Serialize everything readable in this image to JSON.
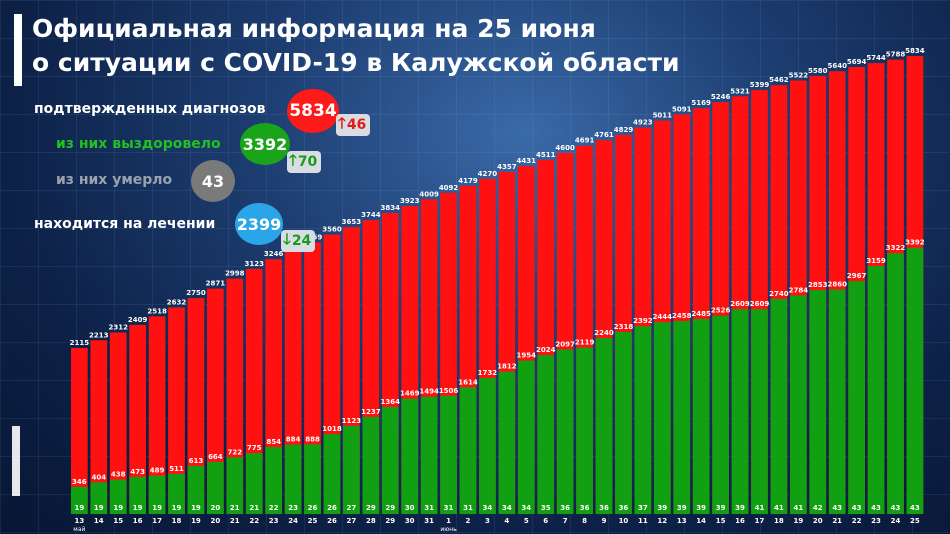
{
  "title_line1": "Официальная информация на 25 июня",
  "title_line2": "о ситуации с COVID-19 в Калужской области",
  "stats": {
    "confirmed": {
      "label": "подтвержденных диагнозов",
      "value": "5834",
      "delta": "46",
      "color": "#ff1a1a"
    },
    "recovered": {
      "label": "из них выздоровело",
      "value": "3392",
      "delta": "70",
      "color": "#1aa41a"
    },
    "died": {
      "label": "из них умерло",
      "value": "43",
      "color": "#7a7a7a"
    },
    "treatment": {
      "label": "находится на лечении",
      "value": "2399",
      "delta": "24",
      "color": "#2aa6e8"
    }
  },
  "colors": {
    "confirmed": "#ff1111",
    "recovered": "#11a011",
    "died_text": "#ffffff",
    "up_arrow_red": "#e01b1b",
    "up_arrow_green": "#1a9a1a",
    "down_arrow_green": "#1a9a1a"
  },
  "chart_data": {
    "type": "bar",
    "x": [
      "13",
      "14",
      "15",
      "16",
      "17",
      "18",
      "19",
      "20",
      "21",
      "22",
      "23",
      "24",
      "25",
      "26",
      "27",
      "28",
      "29",
      "30",
      "31",
      "1",
      "2",
      "3",
      "4",
      "5",
      "6",
      "7",
      "8",
      "9",
      "10",
      "11",
      "12",
      "13",
      "14",
      "15",
      "16",
      "17",
      "18",
      "19",
      "20",
      "21",
      "22",
      "23",
      "24",
      "25"
    ],
    "month_labels": [
      {
        "index": 0,
        "label": "май"
      },
      {
        "index": 19,
        "label": "июнь"
      }
    ],
    "series": [
      {
        "key": "confirmed",
        "values": [
          2115,
          2213,
          2312,
          2409,
          2518,
          2632,
          2750,
          2871,
          2998,
          3123,
          3246,
          3354,
          3459,
          3560,
          3653,
          3744,
          3834,
          3923,
          4009,
          4092,
          4179,
          4270,
          4357,
          4431,
          4511,
          4600,
          4691,
          4761,
          4829,
          4923,
          5011,
          5091,
          5169,
          5246,
          5321,
          5399,
          5462,
          5522,
          5580,
          5640,
          5694,
          5744,
          5788,
          5834
        ]
      },
      {
        "key": "recovered",
        "values": [
          346,
          404,
          438,
          473,
          489,
          511,
          613,
          664,
          722,
          775,
          854,
          884,
          888,
          1018,
          1123,
          1237,
          1364,
          1469,
          1494,
          1506,
          1614,
          1732,
          1812,
          1954,
          2024,
          2097,
          2119,
          2240,
          2318,
          2392,
          2444,
          2458,
          2485,
          2526,
          2609,
          2609,
          2740,
          2784,
          2853,
          2860,
          2967,
          3159,
          3322,
          3392
        ]
      },
      {
        "key": "died",
        "values": [
          19,
          19,
          19,
          19,
          19,
          19,
          19,
          20,
          21,
          21,
          22,
          23,
          26,
          26,
          27,
          29,
          29,
          30,
          31,
          31,
          31,
          34,
          34,
          34,
          35,
          36,
          36,
          36,
          36,
          37,
          39,
          39,
          39,
          39,
          39,
          41,
          41,
          41,
          42,
          43,
          43,
          43,
          43,
          43
        ]
      }
    ],
    "ylim": [
      0,
      5834
    ]
  }
}
